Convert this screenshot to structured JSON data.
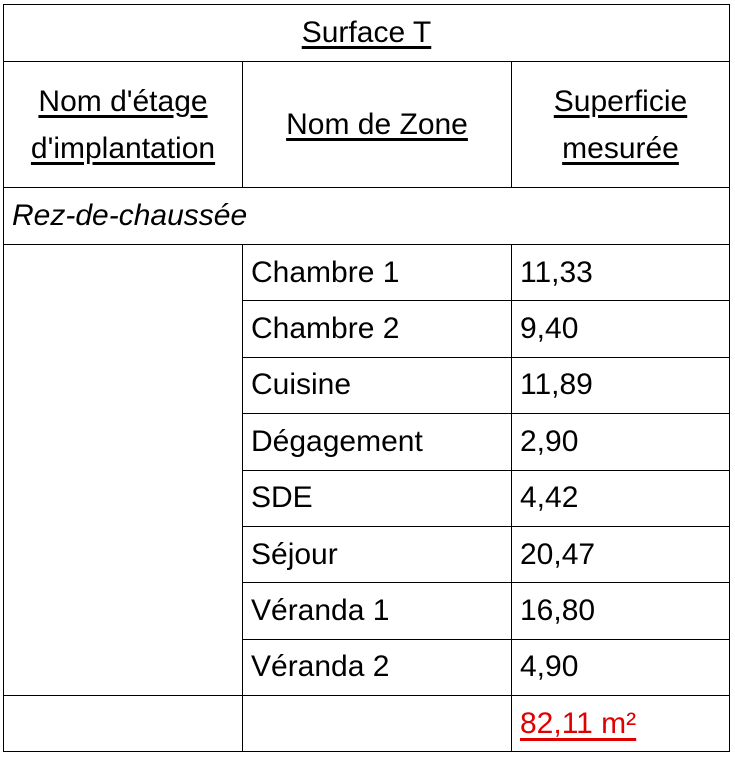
{
  "title": "Surface T",
  "headers": [
    "Nom d'étage d'implantation",
    "Nom de Zone",
    "Superficie mesurée"
  ],
  "header_lines": [
    [
      "Nom d'étage",
      "d'implantation"
    ],
    [
      "Nom de Zone"
    ],
    [
      "Superficie",
      "mesurée"
    ]
  ],
  "group": "Rez-de-chaussée",
  "rows": [
    {
      "zone": "Chambre 1",
      "area": "11,33"
    },
    {
      "zone": "Chambre 2",
      "area": "9,40"
    },
    {
      "zone": "Cuisine",
      "area": "11,89"
    },
    {
      "zone": "Dégagement",
      "area": "2,90"
    },
    {
      "zone": "SDE",
      "area": "4,42"
    },
    {
      "zone": "Séjour",
      "area": "20,47"
    },
    {
      "zone": "Véranda 1",
      "area": "16,80"
    },
    {
      "zone": "Véranda 2",
      "area": "4,90"
    }
  ],
  "total": "82,11 m²",
  "colors": {
    "total": "#e00000"
  }
}
